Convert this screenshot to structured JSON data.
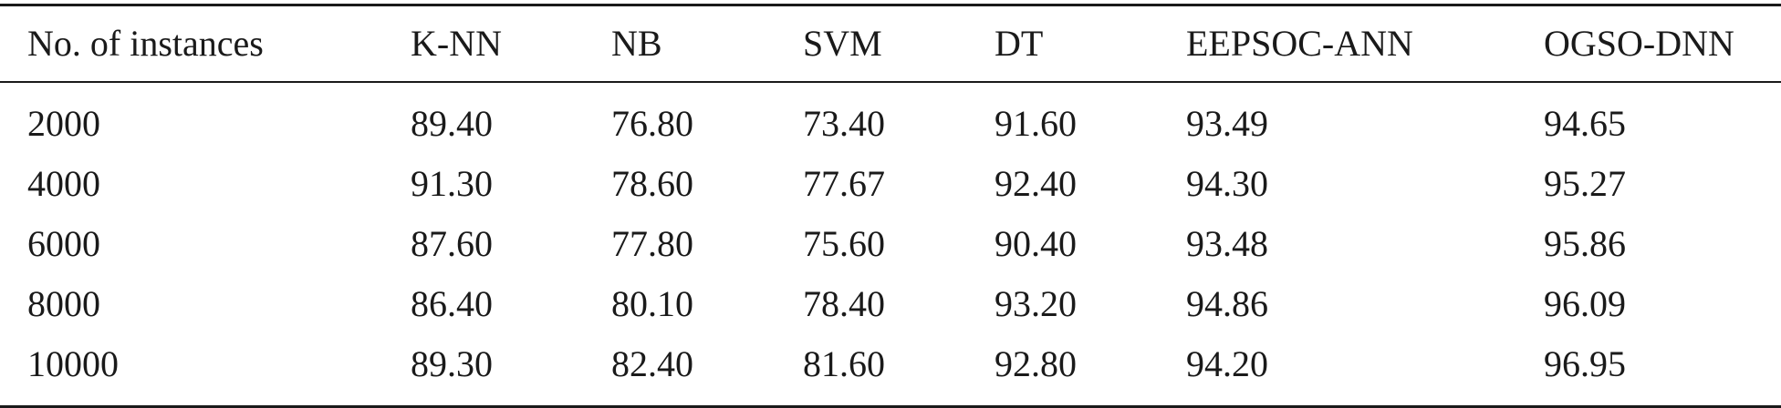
{
  "table": {
    "headers": [
      "No. of instances",
      "K-NN",
      "NB",
      "SVM",
      "DT",
      "EEPSOC-ANN",
      "OGSO-DNN"
    ],
    "rows": [
      [
        "2000",
        "89.40",
        "76.80",
        "73.40",
        "91.60",
        "93.49",
        "94.65"
      ],
      [
        "4000",
        "91.30",
        "78.60",
        "77.67",
        "92.40",
        "94.30",
        "95.27"
      ],
      [
        "6000",
        "87.60",
        "77.80",
        "75.60",
        "90.40",
        "93.48",
        "95.86"
      ],
      [
        "8000",
        "86.40",
        "80.10",
        "78.40",
        "93.20",
        "94.86",
        "96.09"
      ],
      [
        "10000",
        "89.30",
        "82.40",
        "81.60",
        "92.80",
        "94.20",
        "96.95"
      ]
    ]
  }
}
